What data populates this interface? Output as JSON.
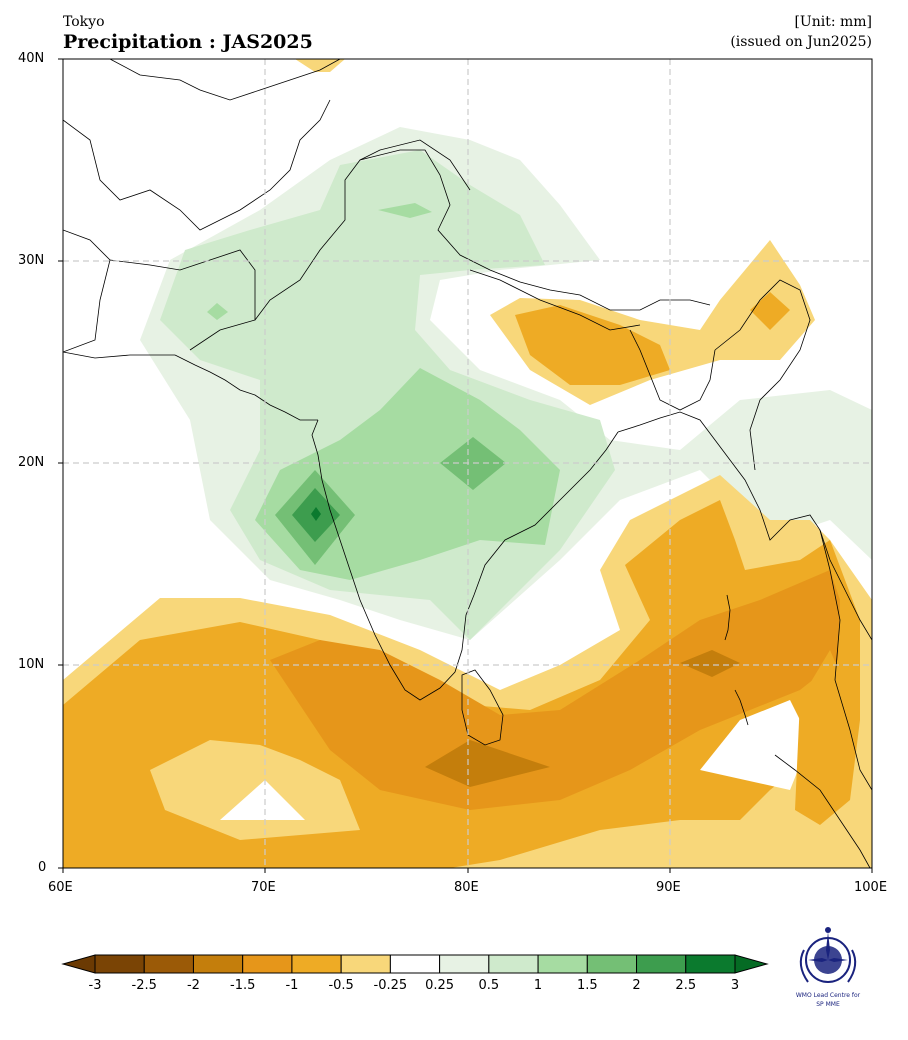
{
  "header": {
    "location": "Tokyo",
    "title": "Precipitation : JAS2025",
    "unit": "[Unit: mm]",
    "issued": "(issued on Jun2025)"
  },
  "axes": {
    "lat_ticks": [
      "40N",
      "30N",
      "20N",
      "10N",
      "0"
    ],
    "lon_ticks": [
      "60E",
      "70E",
      "80E",
      "90E",
      "100E"
    ]
  },
  "colorbar": {
    "labels": [
      "-3",
      "-2.5",
      "-2",
      "-1.5",
      "-1",
      "-0.5",
      "-0.25",
      "0.25",
      "0.5",
      "1",
      "1.5",
      "2",
      "2.5",
      "3"
    ],
    "colors": [
      "#7a4405",
      "#9b5a07",
      "#c47e0c",
      "#e6961a",
      "#eeab25",
      "#f8d77a",
      "#ffffff",
      "#e7f2e4",
      "#cfeacc",
      "#a6dca2",
      "#74bf75",
      "#3d9d4e",
      "#0b7a2e"
    ],
    "under_color": "#6b3a03",
    "over_color": "#056b24"
  },
  "logo": {
    "line1": "WMO Lead Centre for",
    "line2": "SP MME"
  }
}
